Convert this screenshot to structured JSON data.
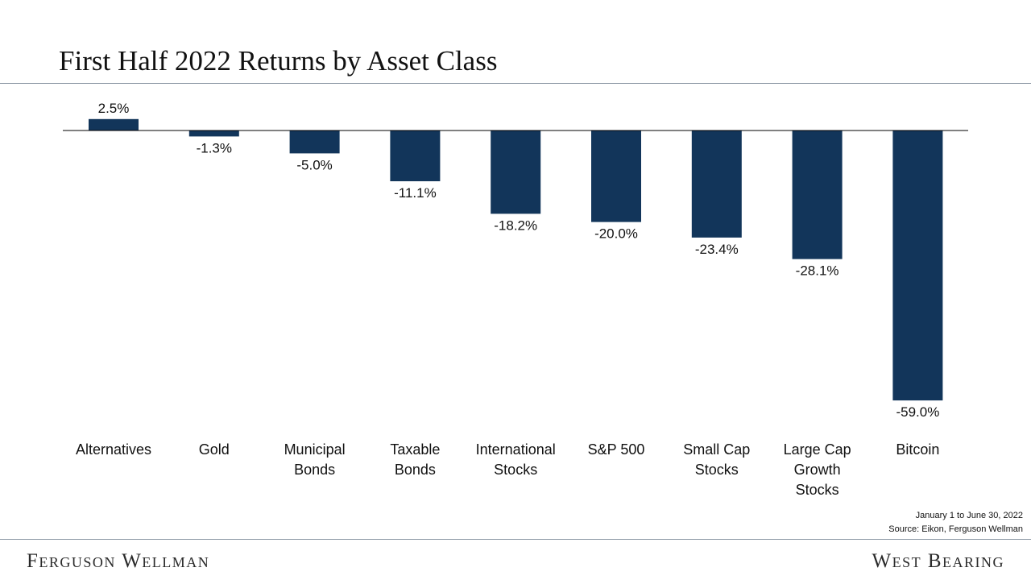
{
  "title": "First Half 2022 Returns by Asset Class",
  "note": {
    "line1": "January 1 to June 30, 2022",
    "line2": "Source: Eikon, Ferguson Wellman"
  },
  "footer": {
    "left_logo": "Ferguson Wellman",
    "right_logo": "West Bearing"
  },
  "colors": {
    "bar": "#12355a",
    "axis": "#000000"
  },
  "chart_data": {
    "type": "bar",
    "title": "First Half 2022 Returns by Asset Class",
    "categories": [
      [
        "Alternatives"
      ],
      [
        "Gold"
      ],
      [
        "Municipal",
        "Bonds"
      ],
      [
        "Taxable",
        "Bonds"
      ],
      [
        "International",
        "Stocks"
      ],
      [
        "S&P 500"
      ],
      [
        "Small Cap",
        "Stocks"
      ],
      [
        "Large Cap",
        "Growth",
        "Stocks"
      ],
      [
        "Bitcoin"
      ]
    ],
    "values": [
      2.5,
      -1.3,
      -5.0,
      -11.1,
      -18.2,
      -20.0,
      -23.4,
      -28.1,
      -59.0
    ],
    "value_labels": [
      "2.5%",
      "-1.3%",
      "-5.0%",
      "-11.1%",
      "-18.2%",
      "-20.0%",
      "-23.4%",
      "-28.1%",
      "-59.0%"
    ],
    "ylim": [
      -59,
      2.5
    ],
    "grid": false,
    "legend": "none"
  }
}
